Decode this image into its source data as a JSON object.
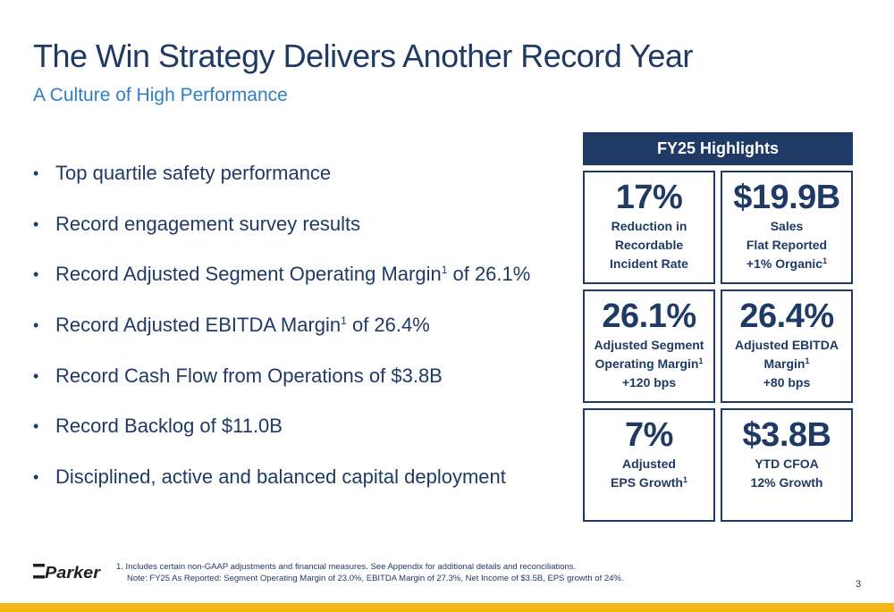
{
  "header": {
    "title": "The Win Strategy Delivers Another Record Year",
    "subtitle": "A Culture of High Performance"
  },
  "bullets": [
    {
      "text": "Top quartile safety performance"
    },
    {
      "text": "Record engagement survey results"
    },
    {
      "pre": "Record Adjusted Segment Operating Margin",
      "sup": "1",
      "post": " of 26.1%"
    },
    {
      "pre": "Record Adjusted EBITDA Margin",
      "sup": "1",
      "post": " of 26.4%"
    },
    {
      "text": "Record Cash Flow from Operations of $3.8B"
    },
    {
      "text": "Record Backlog of $11.0B"
    },
    {
      "text": "Disciplined, active and balanced capital deployment"
    }
  ],
  "bullet_glyph": "•",
  "highlights": {
    "heading": "FY25 Highlights",
    "cards": [
      {
        "value": "17%",
        "line1": "Reduction in",
        "line2": "Recordable",
        "line3": "Incident Rate"
      },
      {
        "value": "$19.9B",
        "line1": "Sales",
        "line2": "Flat Reported",
        "line3": "+1% Organic",
        "line3_sup": "1"
      },
      {
        "value": "26.1%",
        "line1": "Adjusted Segment",
        "line2": "Operating Margin",
        "line2_sup": "1",
        "line3": "+120 bps"
      },
      {
        "value": "26.4%",
        "line1": "Adjusted EBITDA",
        "line2": "Margin",
        "line2_sup": "1",
        "line3": "+80 bps"
      },
      {
        "value": "7%",
        "line1": "Adjusted",
        "line2": "EPS Growth",
        "line2_sup": "1"
      },
      {
        "value": "$3.8B",
        "line1": "YTD CFOA",
        "line2": "12% Growth"
      }
    ]
  },
  "footer": {
    "logo_text": "Parker",
    "footnote_1": "1. Includes certain non-GAAP adjustments and financial measures. See Appendix for additional details and reconciliations.",
    "footnote_2": "Note: FY25 As Reported: Segment Operating Margin of 23.0%, EBITDA Margin of 27.3%, Net Income of $3.5B, EPS growth of 24%.",
    "page_number": "3"
  },
  "colors": {
    "navy": "#1f3a64",
    "blue": "#2f7ec1",
    "gold": "#f2b616"
  }
}
